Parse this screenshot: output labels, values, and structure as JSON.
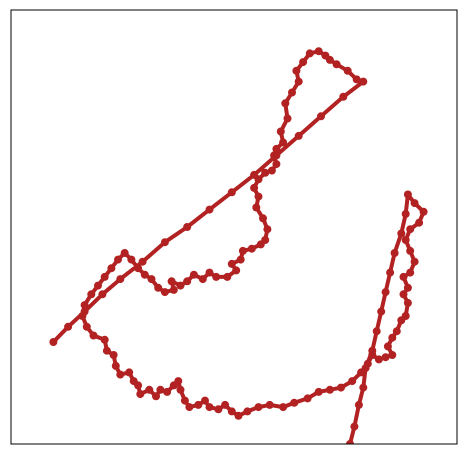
{
  "chart_data": {
    "type": "line",
    "title": "",
    "xlabel": "",
    "ylabel": "",
    "xlim": [
      0,
      100
    ],
    "ylim": [
      0,
      100
    ],
    "grid": false,
    "legend": "none",
    "colors": {
      "series": "#b22222",
      "frame": "#000000",
      "background": "#ffffff"
    },
    "series": [
      {
        "points": [
          [
            9.5,
            23.5
          ],
          [
            12.8,
            27.0
          ],
          [
            16.5,
            30.5
          ],
          [
            20.5,
            34.5
          ],
          [
            24.5,
            38.0
          ],
          [
            29.5,
            42.0
          ],
          [
            34.5,
            46.5
          ],
          [
            39.5,
            50.0
          ],
          [
            44.5,
            54.0
          ],
          [
            49.5,
            58.0
          ],
          [
            54.5,
            62.0
          ],
          [
            59.5,
            66.5
          ],
          [
            64.5,
            71.0
          ],
          [
            69.5,
            75.5
          ],
          [
            74.5,
            80.0
          ],
          [
            79.0,
            83.5
          ],
          [
            77.5,
            84.0
          ],
          [
            75.5,
            86.0
          ],
          [
            73.0,
            87.5
          ],
          [
            71.5,
            88.5
          ],
          [
            70.5,
            89.5
          ],
          [
            69.0,
            90.5
          ],
          [
            67.0,
            90.0
          ],
          [
            65.5,
            88.0
          ],
          [
            64.0,
            86.0
          ],
          [
            64.5,
            83.5
          ],
          [
            63.0,
            81.0
          ],
          [
            61.5,
            78.5
          ],
          [
            62.0,
            75.0
          ],
          [
            60.5,
            72.0
          ],
          [
            61.0,
            69.5
          ],
          [
            59.5,
            68.0
          ],
          [
            59.0,
            66.5
          ],
          [
            59.5,
            64.5
          ],
          [
            58.5,
            63.0
          ],
          [
            57.0,
            62.5
          ],
          [
            55.5,
            61.0
          ],
          [
            54.5,
            59.0
          ],
          [
            55.5,
            57.0
          ],
          [
            55.0,
            54.5
          ],
          [
            56.5,
            52.0
          ],
          [
            57.5,
            49.5
          ],
          [
            57.0,
            47.0
          ],
          [
            56.0,
            46.0
          ],
          [
            54.0,
            45.0
          ],
          [
            52.0,
            44.5
          ],
          [
            51.5,
            42.5
          ],
          [
            49.5,
            41.5
          ],
          [
            50.5,
            40.0
          ],
          [
            48.5,
            38.5
          ],
          [
            46.0,
            38.5
          ],
          [
            44.5,
            39.5
          ],
          [
            43.0,
            38.0
          ],
          [
            41.0,
            39.0
          ],
          [
            39.5,
            37.5
          ],
          [
            38.0,
            36.5
          ],
          [
            36.0,
            37.5
          ],
          [
            36.5,
            35.5
          ],
          [
            34.5,
            35.0
          ],
          [
            33.0,
            36.0
          ],
          [
            31.5,
            38.0
          ],
          [
            30.0,
            39.0
          ],
          [
            28.5,
            40.5
          ],
          [
            27.0,
            42.5
          ],
          [
            25.5,
            44.0
          ],
          [
            24.0,
            42.5
          ],
          [
            22.5,
            40.5
          ],
          [
            21.0,
            38.5
          ],
          [
            19.5,
            36.5
          ],
          [
            18.0,
            34.5
          ],
          [
            16.5,
            32.0
          ],
          [
            16.0,
            29.5
          ],
          [
            17.0,
            27.0
          ],
          [
            18.5,
            25.0
          ],
          [
            21.0,
            24.0
          ],
          [
            21.5,
            21.5
          ],
          [
            23.0,
            20.5
          ],
          [
            23.5,
            18.0
          ],
          [
            24.5,
            16.0
          ],
          [
            26.5,
            16.5
          ],
          [
            27.5,
            14.5
          ],
          [
            28.5,
            13.5
          ],
          [
            29.0,
            11.5
          ],
          [
            31.0,
            12.5
          ],
          [
            32.5,
            11.0
          ],
          [
            33.5,
            12.5
          ],
          [
            35.0,
            12.0
          ],
          [
            36.5,
            13.5
          ],
          [
            37.5,
            14.5
          ],
          [
            38.0,
            12.5
          ],
          [
            39.0,
            10.0
          ],
          [
            40.0,
            8.5
          ],
          [
            42.0,
            9.0
          ],
          [
            43.5,
            10.0
          ],
          [
            44.5,
            8.5
          ],
          [
            46.5,
            8.0
          ],
          [
            48.0,
            9.0
          ],
          [
            49.5,
            7.5
          ],
          [
            51.0,
            6.5
          ],
          [
            53.0,
            7.5
          ],
          [
            55.5,
            8.5
          ],
          [
            58.0,
            9.0
          ],
          [
            61.0,
            8.5
          ],
          [
            63.5,
            9.5
          ],
          [
            66.5,
            10.5
          ],
          [
            69.0,
            12.0
          ],
          [
            71.5,
            12.5
          ],
          [
            74.0,
            13.0
          ],
          [
            76.5,
            14.5
          ],
          [
            78.5,
            16.5
          ],
          [
            80.0,
            18.5
          ],
          [
            81.0,
            20.5
          ],
          [
            82.5,
            19.5
          ],
          [
            84.0,
            20.0
          ],
          [
            85.5,
            20.5
          ],
          [
            84.5,
            22.5
          ],
          [
            85.5,
            24.5
          ],
          [
            86.5,
            26.0
          ],
          [
            87.5,
            28.5
          ],
          [
            88.5,
            29.5
          ],
          [
            89.0,
            32.5
          ],
          [
            88.0,
            34.5
          ],
          [
            89.0,
            36.0
          ],
          [
            88.0,
            38.5
          ],
          [
            89.5,
            39.5
          ],
          [
            90.5,
            42.0
          ],
          [
            89.5,
            44.5
          ],
          [
            88.5,
            47.0
          ],
          [
            89.5,
            49.5
          ],
          [
            91.5,
            51.0
          ],
          [
            92.5,
            53.5
          ],
          [
            90.5,
            55.5
          ],
          [
            89.0,
            57.5
          ],
          [
            88.5,
            53.0
          ],
          [
            87.5,
            48.5
          ],
          [
            86.0,
            44.0
          ],
          [
            85.0,
            39.5
          ],
          [
            84.0,
            35.0
          ],
          [
            83.0,
            30.5
          ],
          [
            82.0,
            26.0
          ],
          [
            81.0,
            21.5
          ],
          [
            79.5,
            17.5
          ],
          [
            79.0,
            13.0
          ],
          [
            78.0,
            9.0
          ],
          [
            77.0,
            4.0
          ],
          [
            76.0,
            0.0
          ]
        ]
      }
    ]
  }
}
